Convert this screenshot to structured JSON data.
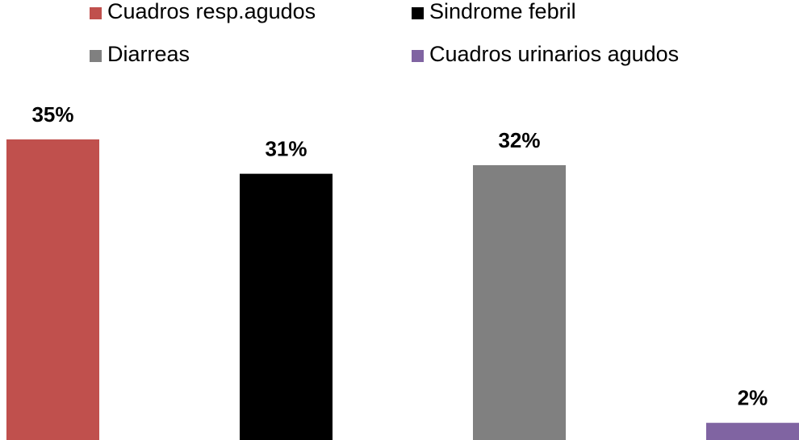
{
  "chart_data": {
    "type": "bar",
    "series": [
      {
        "name": "Cuadros resp.agudos",
        "color": "#c0504d",
        "values": [
          35
        ],
        "value_labels": [
          "35%"
        ]
      },
      {
        "name": "Sindrome febril",
        "color": "#000000",
        "values": [
          31
        ],
        "value_labels": [
          "31%"
        ]
      },
      {
        "name": "Diarreas",
        "color": "#808080",
        "values": [
          32
        ],
        "value_labels": [
          "32%"
        ]
      },
      {
        "name": "Cuadros urinarios agudos",
        "color": "#8064a2",
        "values": [
          2
        ],
        "value_labels": [
          "2%"
        ]
      }
    ]
  }
}
